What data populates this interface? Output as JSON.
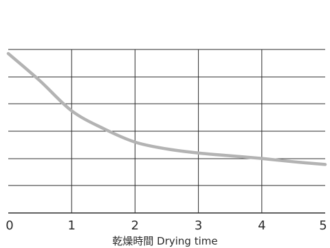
{
  "chart_data": {
    "type": "line",
    "title": "",
    "xlabel": "乾燥時間 Drying time",
    "ylabel": "",
    "xlim": [
      0,
      5
    ],
    "ylim": [
      0,
      6
    ],
    "x_ticks": [
      "0",
      "1",
      "2",
      "3",
      "4",
      "5"
    ],
    "y_ticks": [],
    "grid": true,
    "series": [
      {
        "x": [
          0,
          0.5,
          1,
          1.5,
          2,
          2.5,
          3,
          3.5,
          4,
          4.5,
          5
        ],
        "values": [
          5.85,
          4.85,
          3.75,
          3.1,
          2.6,
          2.35,
          2.2,
          2.1,
          2.0,
          1.88,
          1.78
        ],
        "color": "#b3b3b3"
      }
    ],
    "colors": {
      "grid": "#2b2b2b",
      "curve": "#b3b3b3",
      "text": "#2a2a2a"
    }
  }
}
